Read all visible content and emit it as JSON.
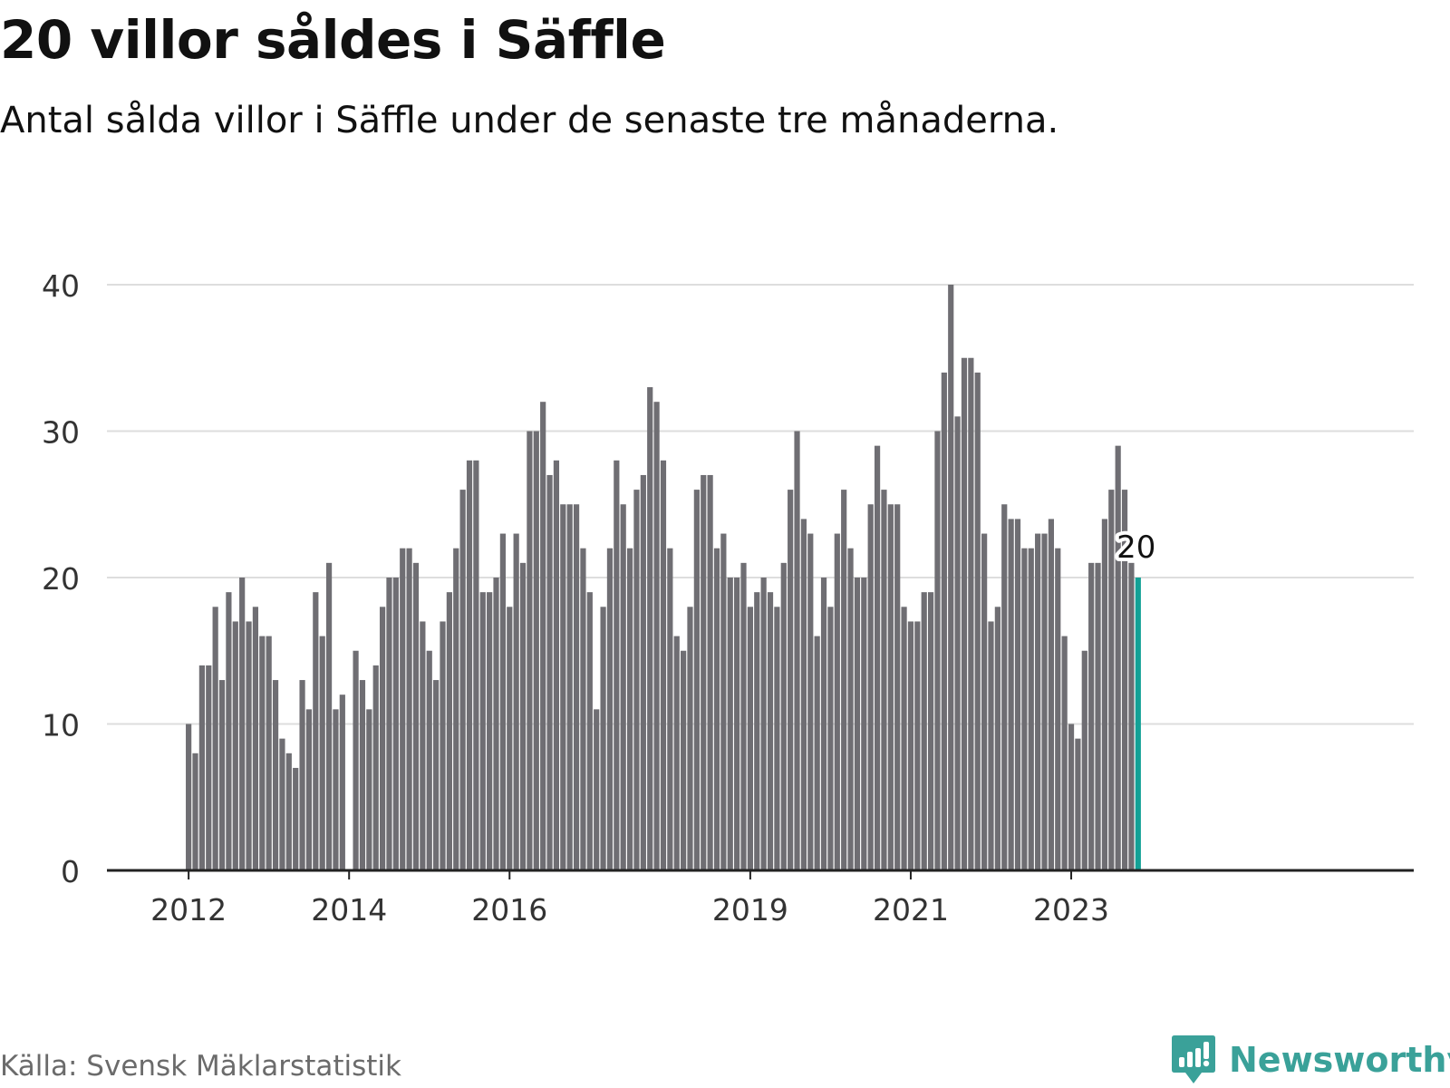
{
  "title": "20 villor såldes i Säffle",
  "subtitle": "Antal sålda villor i Säffle under de senaste tre månaderna.",
  "source": "Källa: Svensk Mäklarstatistik",
  "brand": {
    "name": "Newsworthy",
    "icon": "newsworthy-chart-bubble-icon",
    "color": "#3aa199"
  },
  "colors": {
    "bar": "#6f6e73",
    "highlight": "#13a196",
    "grid": "#dddddd",
    "axis": "#222222",
    "text": "#333333"
  },
  "chart_data": {
    "type": "bar",
    "title": "20 villor såldes i Säffle",
    "subtitle": "Antal sålda villor i Säffle under de senaste tre månaderna.",
    "xlabel": "",
    "ylabel": "",
    "ylim": [
      0,
      40
    ],
    "yticks": [
      0,
      10,
      20,
      30,
      40
    ],
    "grid": true,
    "x_tick_labels": [
      {
        "label": "2012",
        "month": "2012-01"
      },
      {
        "label": "2014",
        "month": "2014-01"
      },
      {
        "label": "2016",
        "month": "2016-01"
      },
      {
        "label": "2019",
        "month": "2019-01"
      },
      {
        "label": "2021",
        "month": "2021-01"
      },
      {
        "label": "2023",
        "month": "2023-01"
      }
    ],
    "first_month": "2011-10",
    "last_month": "2023-11",
    "values": [
      null,
      null,
      null,
      10,
      8,
      14,
      14,
      18,
      13,
      19,
      17,
      20,
      17,
      18,
      16,
      16,
      13,
      9,
      8,
      7,
      13,
      11,
      19,
      16,
      21,
      11,
      12,
      null,
      15,
      13,
      11,
      14,
      18,
      20,
      20,
      22,
      22,
      21,
      17,
      15,
      13,
      17,
      19,
      22,
      26,
      28,
      28,
      19,
      19,
      20,
      23,
      18,
      23,
      21,
      30,
      30,
      32,
      27,
      28,
      25,
      25,
      25,
      22,
      19,
      11,
      18,
      22,
      28,
      25,
      22,
      26,
      27,
      33,
      32,
      28,
      22,
      16,
      15,
      18,
      26,
      27,
      27,
      22,
      23,
      20,
      20,
      21,
      18,
      19,
      20,
      19,
      18,
      21,
      26,
      30,
      24,
      23,
      16,
      20,
      18,
      23,
      26,
      22,
      20,
      20,
      25,
      29,
      26,
      25,
      25,
      18,
      17,
      17,
      19,
      19,
      30,
      34,
      40,
      31,
      35,
      35,
      34,
      23,
      17,
      18,
      25,
      24,
      24,
      22,
      22,
      23,
      23,
      24,
      22,
      16,
      10,
      9,
      15,
      21,
      21,
      24,
      26,
      29,
      26,
      21,
      20
    ],
    "highlight": {
      "month": "2023-11",
      "value": 20,
      "label": "20"
    }
  }
}
